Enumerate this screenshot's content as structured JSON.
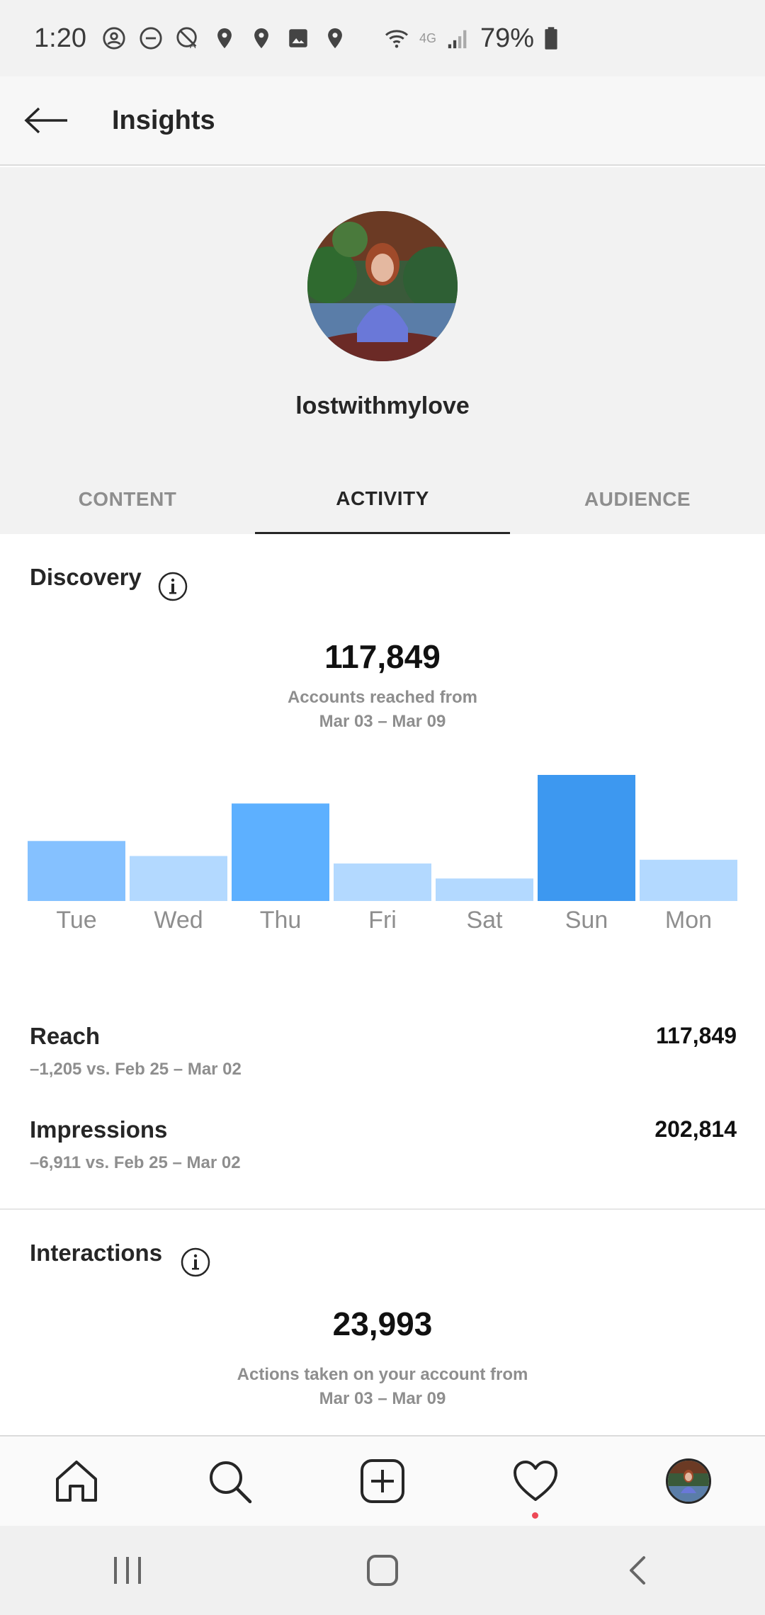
{
  "status_bar": {
    "time": "1:20",
    "battery": "79%",
    "network_label": "4G"
  },
  "header": {
    "title": "Insights"
  },
  "profile": {
    "username": "lostwithmylove"
  },
  "tabs": [
    {
      "label": "CONTENT",
      "active": false
    },
    {
      "label": "ACTIVITY",
      "active": true
    },
    {
      "label": "AUDIENCE",
      "active": false
    }
  ],
  "discovery": {
    "title": "Discovery",
    "total": "117,849",
    "caption_line1": "Accounts reached from",
    "caption_line2": "Mar 03 – Mar 09"
  },
  "chart_data": {
    "type": "bar",
    "categories": [
      "Tue",
      "Wed",
      "Thu",
      "Fri",
      "Sat",
      "Sun",
      "Mon"
    ],
    "values": [
      16,
      12,
      26,
      10,
      6,
      34,
      11
    ],
    "colors": [
      "#85c1ff",
      "#b3d9ff",
      "#5db0ff",
      "#b3d9ff",
      "#b3d9ff",
      "#3d98f0",
      "#b3d9ff"
    ],
    "title": "",
    "xlabel": "",
    "ylabel": "",
    "grid": false
  },
  "metrics": [
    {
      "label": "Reach",
      "value": "117,849",
      "delta": "–1,205 vs. Feb 25 – Mar 02"
    },
    {
      "label": "Impressions",
      "value": "202,814",
      "delta": "–6,911 vs. Feb 25 – Mar 02"
    }
  ],
  "interactions": {
    "title": "Interactions",
    "total": "23,993",
    "caption_line1": "Actions taken on your account from",
    "caption_line2": "Mar 03 – Mar 09"
  },
  "colors": {
    "accent_red": "#ed4956",
    "text_primary": "#262626",
    "text_secondary": "#8e8e8e"
  }
}
